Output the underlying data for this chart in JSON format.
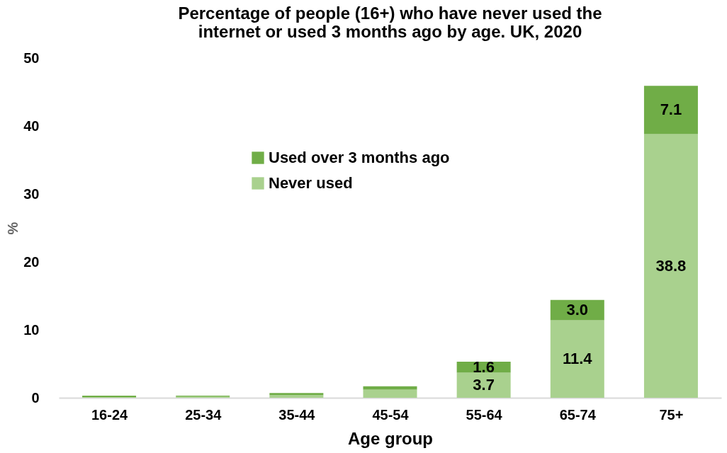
{
  "chart_data": {
    "type": "bar",
    "title": [
      "Percentage of people (16+) who have never used the",
      "internet or used 3 months ago by age.  UK, 2020"
    ],
    "xlabel": "Age group",
    "ylabel": "%",
    "categories": [
      "16-24",
      "25-34",
      "35-44",
      "45-54",
      "55-64",
      "65-74",
      "75+"
    ],
    "stacked": true,
    "series": [
      {
        "name": "Never used",
        "color": "#a9d18e",
        "values": [
          0.1,
          0.2,
          0.4,
          1.2,
          3.7,
          11.4,
          38.8
        ],
        "value_labels": [
          null,
          null,
          null,
          null,
          "3.7",
          "11.4",
          "38.8"
        ]
      },
      {
        "name": "Used over 3 months ago",
        "color": "#70ad47",
        "values": [
          0.2,
          0.1,
          0.3,
          0.5,
          1.6,
          3.0,
          7.1
        ],
        "value_labels": [
          null,
          null,
          null,
          null,
          "1.6",
          "3.0",
          "7.1"
        ]
      }
    ],
    "ylim": [
      0,
      50
    ],
    "yticks": [
      0,
      10,
      20,
      30,
      40,
      50
    ],
    "grid": false,
    "legend": "top"
  }
}
